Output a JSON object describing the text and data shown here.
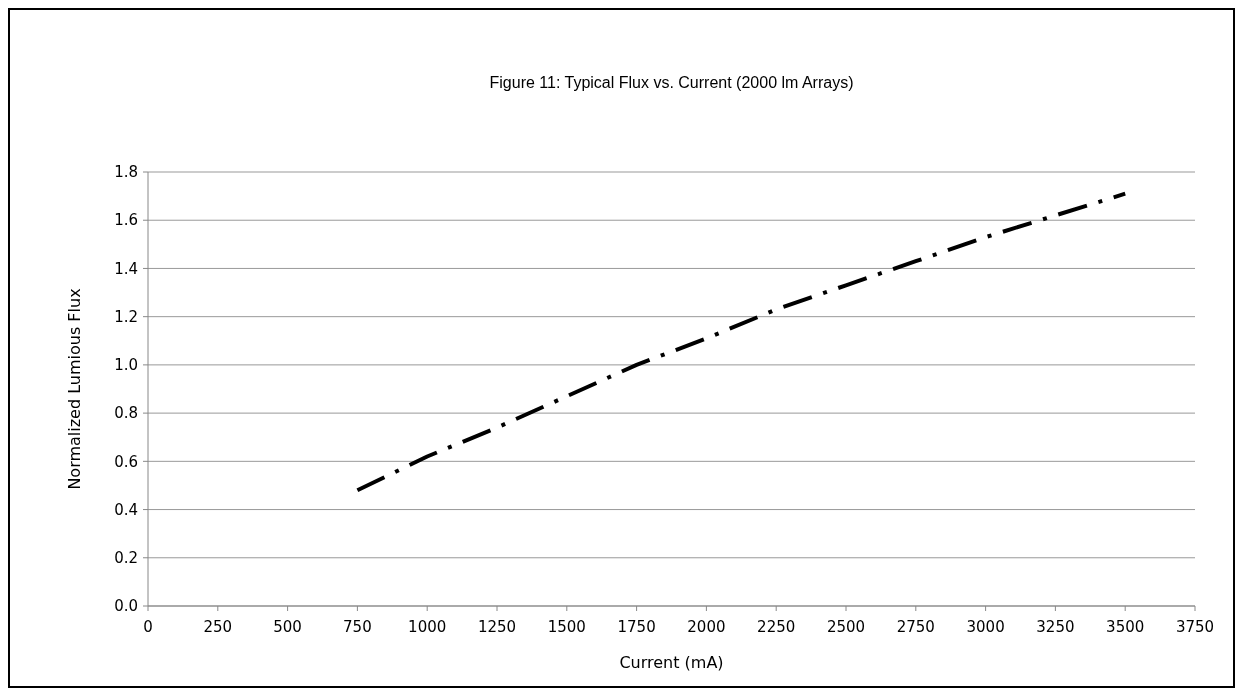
{
  "chart_data": {
    "type": "line",
    "title": "Figure 11:  Typical Flux vs. Current (2000 lm Arrays)",
    "xlabel": "Current (mA)",
    "ylabel": "Normalized Lumious Flux",
    "x": [
      750,
      1000,
      1250,
      1500,
      1750,
      2000,
      2250,
      2500,
      2750,
      3000,
      3250,
      3500
    ],
    "series": [
      {
        "color": "#000000",
        "values": [
          0.48,
          0.62,
          0.74,
          0.87,
          1.0,
          1.11,
          1.23,
          1.33,
          1.43,
          1.53,
          1.62,
          1.71
        ]
      }
    ],
    "xlim": [
      0,
      3750
    ],
    "xticks": [
      0,
      250,
      500,
      750,
      1000,
      1250,
      1500,
      1750,
      2000,
      2250,
      2500,
      2750,
      3000,
      3250,
      3500,
      3750
    ],
    "ylim": [
      0,
      1.8
    ],
    "yticks": [
      {
        "value": 0,
        "label": "0.0"
      },
      {
        "value": 0.2,
        "label": "0.2"
      },
      {
        "value": 0.4,
        "label": "0.4"
      },
      {
        "value": 0.6,
        "label": "0.6"
      },
      {
        "value": 0.8,
        "label": "0.8"
      },
      {
        "value": 1,
        "label": "1.0"
      },
      {
        "value": 1.2,
        "label": "1.2"
      },
      {
        "value": 1.4,
        "label": "1.4"
      },
      {
        "value": 1.6,
        "label": "1.6"
      },
      {
        "value": 1.8,
        "label": "1.8"
      }
    ],
    "grid": "y",
    "line_style": "dashed",
    "marker": "none"
  }
}
